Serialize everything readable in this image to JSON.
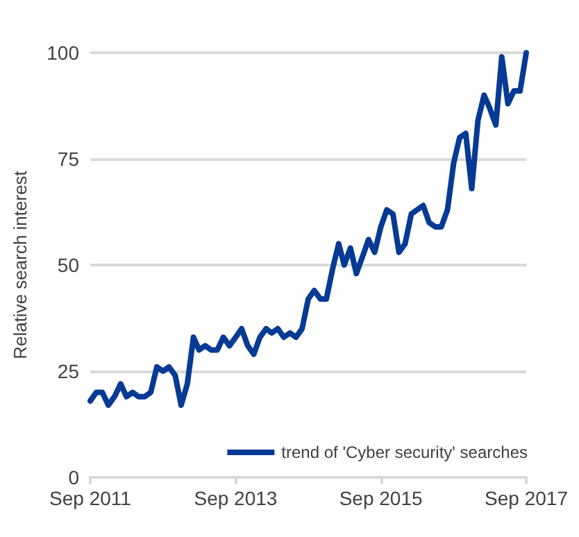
{
  "chart_data": {
    "type": "line",
    "ylabel": "Relative search interest",
    "x": [
      "2011-09",
      "2011-10",
      "2011-11",
      "2011-12",
      "2012-01",
      "2012-02",
      "2012-03",
      "2012-04",
      "2012-05",
      "2012-06",
      "2012-07",
      "2012-08",
      "2012-09",
      "2012-10",
      "2012-11",
      "2012-12",
      "2013-01",
      "2013-02",
      "2013-03",
      "2013-04",
      "2013-05",
      "2013-06",
      "2013-07",
      "2013-08",
      "2013-09",
      "2013-10",
      "2013-11",
      "2013-12",
      "2014-01",
      "2014-02",
      "2014-03",
      "2014-04",
      "2014-05",
      "2014-06",
      "2014-07",
      "2014-08",
      "2014-09",
      "2014-10",
      "2014-11",
      "2014-12",
      "2015-01",
      "2015-02",
      "2015-03",
      "2015-04",
      "2015-05",
      "2015-06",
      "2015-07",
      "2015-08",
      "2015-09",
      "2015-10",
      "2015-11",
      "2015-12",
      "2016-01",
      "2016-02",
      "2016-03",
      "2016-04",
      "2016-05",
      "2016-06",
      "2016-07",
      "2016-08",
      "2016-09",
      "2016-10",
      "2016-11",
      "2016-12",
      "2017-01",
      "2017-02",
      "2017-03",
      "2017-04",
      "2017-05",
      "2017-06",
      "2017-07",
      "2017-08",
      "2017-09"
    ],
    "series": [
      {
        "name": "trend of 'Cyber security' searches",
        "color": "#063a94",
        "values": [
          18,
          20,
          20,
          17,
          19,
          22,
          19,
          20,
          19,
          19,
          20,
          26,
          25,
          26,
          24,
          17,
          22,
          33,
          30,
          31,
          30,
          30,
          33,
          31,
          33,
          35,
          31,
          29,
          33,
          35,
          34,
          35,
          33,
          34,
          33,
          35,
          42,
          44,
          42,
          42,
          49,
          55,
          50,
          54,
          48,
          52,
          56,
          53,
          59,
          63,
          62,
          53,
          55,
          62,
          63,
          64,
          60,
          59,
          59,
          63,
          74,
          80,
          81,
          68,
          84,
          90,
          87,
          83,
          99,
          88,
          91,
          91,
          100
        ]
      }
    ],
    "xlim": [
      "2011-09",
      "2017-09"
    ],
    "xticks": [
      {
        "value": "2011-09",
        "label": "Sep 2011"
      },
      {
        "value": "2013-09",
        "label": "Sep 2013"
      },
      {
        "value": "2015-09",
        "label": "Sep 2015"
      },
      {
        "value": "2017-09",
        "label": "Sep 2017"
      }
    ],
    "ylim": [
      0,
      100
    ],
    "yticks": [
      0,
      25,
      50,
      75,
      100
    ],
    "grid": "y",
    "legend": "bottom",
    "marker": "none",
    "line_style": "solid"
  }
}
